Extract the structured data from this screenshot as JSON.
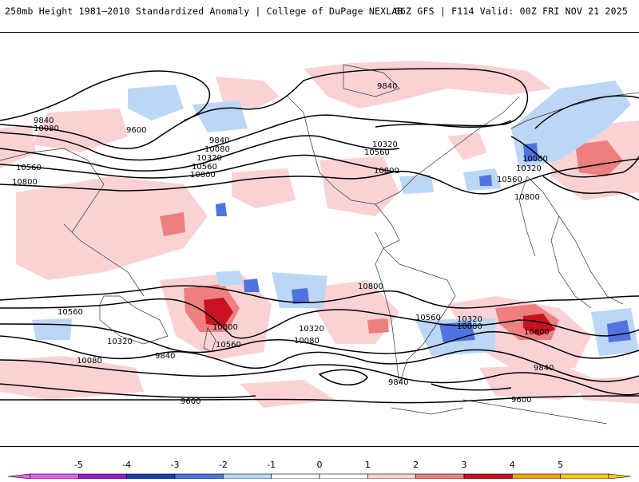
{
  "header": {
    "title": "250mb Height 1981–2010 Standardized Anomaly | College of DuPage NEXLAB",
    "run": "06Z GFS | F114 Valid: 00Z FRI NOV 21 2025"
  },
  "colorbar": {
    "ticks": [
      "-5",
      "-4",
      "-3",
      "-2",
      "-1",
      "0",
      "1",
      "2",
      "3",
      "4",
      "5"
    ],
    "colors": [
      "#e860e8",
      "#9a1bc8",
      "#1e3bb4",
      "#4f74e0",
      "#bcd6f6",
      "#ffffff",
      "#ffffff",
      "#fbd2d4",
      "#ee7f7f",
      "#c81222",
      "#f8a214",
      "#f9c81a"
    ]
  },
  "contours": {
    "labels": [
      "9840",
      "10080",
      "9600",
      "9840",
      "10080",
      "10320",
      "10560",
      "10800",
      "10560",
      "10800",
      "10320",
      "10560",
      "10800",
      "10080",
      "10320",
      "10560",
      "10800",
      "9840",
      "10800",
      "10560",
      "10320",
      "10080",
      "10800",
      "10560",
      "10320",
      "10080",
      "9840",
      "10560",
      "10320",
      "10080",
      "10800",
      "9840",
      "9840",
      "9600",
      "9600"
    ]
  }
}
